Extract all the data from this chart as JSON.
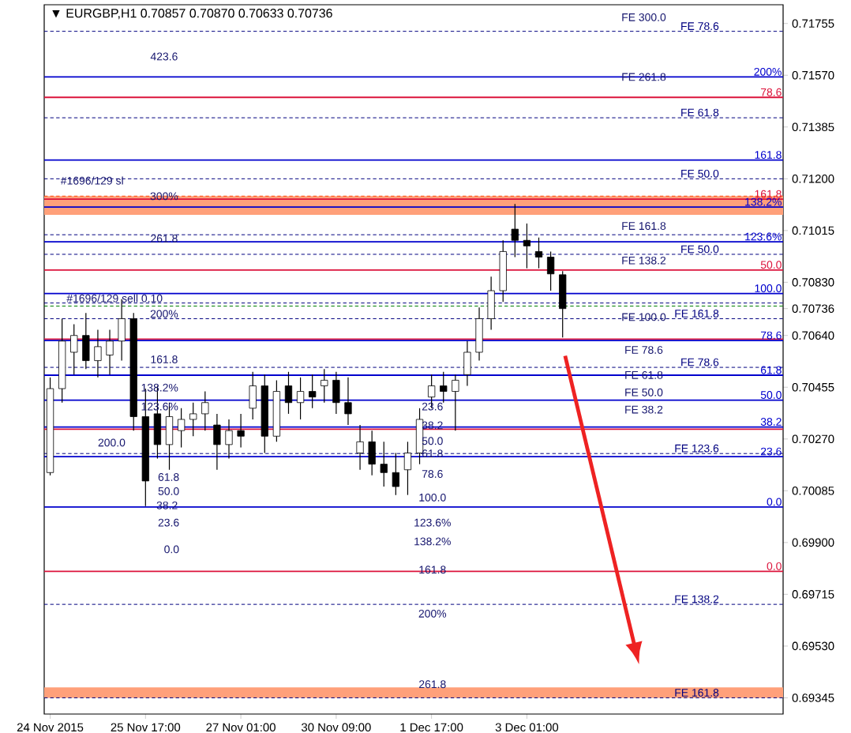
{
  "chart_data": {
    "type": "candlestick",
    "title": "▼ EURGBP,H1  0.70857 0.70870 0.70633 0.70736",
    "categories": [
      "24 Nov 2015",
      null,
      null,
      null,
      null,
      null,
      null,
      null,
      "25 Nov 17:00",
      null,
      null,
      null,
      null,
      null,
      null,
      null,
      "27 Nov 01:00",
      null,
      null,
      null,
      null,
      null,
      null,
      null,
      "30 Nov 09:00",
      null,
      null,
      null,
      null,
      null,
      null,
      null,
      "1 Dec 17:00",
      null,
      null,
      null,
      null,
      null,
      null,
      null,
      "3 Dec 01:00",
      null,
      null,
      null,
      null,
      null,
      null,
      null,
      null,
      null,
      null,
      null,
      null,
      null,
      null,
      null,
      null,
      null,
      null,
      null,
      null,
      null
    ],
    "ohlc": [
      [
        0.7015,
        0.7049,
        0.7014,
        0.7045
      ],
      [
        0.7045,
        0.707,
        0.704,
        0.7062
      ],
      [
        0.7058,
        0.7068,
        0.705,
        0.7064
      ],
      [
        0.7064,
        0.7072,
        0.7052,
        0.7055
      ],
      [
        0.7055,
        0.7066,
        0.7049,
        0.706
      ],
      [
        0.7057,
        0.7066,
        0.705,
        0.7062
      ],
      [
        0.7062,
        0.7077,
        0.7055,
        0.707
      ],
      [
        0.707,
        0.7072,
        0.703,
        0.7035
      ],
      [
        0.7035,
        0.7045,
        0.7003,
        0.7012
      ],
      [
        0.7036,
        0.7046,
        0.702,
        0.7025
      ],
      [
        0.7025,
        0.704,
        0.7016,
        0.7035
      ],
      [
        0.703,
        0.7038,
        0.7024,
        0.7034
      ],
      [
        0.7034,
        0.704,
        0.7028,
        0.7036
      ],
      [
        0.7036,
        0.7044,
        0.703,
        0.704
      ],
      [
        0.7032,
        0.7036,
        0.7016,
        0.7025
      ],
      [
        0.7025,
        0.7034,
        0.702,
        0.703
      ],
      [
        0.703,
        0.7036,
        0.7024,
        0.7028
      ],
      [
        0.7038,
        0.7051,
        0.7034,
        0.7046
      ],
      [
        0.7046,
        0.705,
        0.7022,
        0.7028
      ],
      [
        0.7028,
        0.7048,
        0.7026,
        0.7044
      ],
      [
        0.7046,
        0.7051,
        0.7036,
        0.704
      ],
      [
        0.704,
        0.7049,
        0.7034,
        0.7044
      ],
      [
        0.7044,
        0.705,
        0.7038,
        0.7042
      ],
      [
        0.7046,
        0.7052,
        0.704,
        0.7048
      ],
      [
        0.7048,
        0.7051,
        0.7036,
        0.704
      ],
      [
        0.704,
        0.7049,
        0.7032,
        0.7036
      ],
      [
        0.7022,
        0.7032,
        0.7016,
        0.7026
      ],
      [
        0.7026,
        0.703,
        0.7014,
        0.7018
      ],
      [
        0.7018,
        0.7026,
        0.701,
        0.7015
      ],
      [
        0.7015,
        0.7022,
        0.7007,
        0.701
      ],
      [
        0.7016,
        0.7026,
        0.7007,
        0.7022
      ],
      [
        0.7022,
        0.7038,
        0.7018,
        0.7034
      ],
      [
        0.7042,
        0.705,
        0.7038,
        0.7046
      ],
      [
        0.7046,
        0.7051,
        0.704,
        0.7044
      ],
      [
        0.7044,
        0.705,
        0.703,
        0.7048
      ],
      [
        0.705,
        0.7062,
        0.7046,
        0.7058
      ],
      [
        0.7058,
        0.7074,
        0.7055,
        0.707
      ],
      [
        0.707,
        0.7085,
        0.7066,
        0.708
      ],
      [
        0.708,
        0.7098,
        0.7076,
        0.7094
      ],
      [
        0.7102,
        0.7111,
        0.7092,
        0.7098
      ],
      [
        0.7098,
        0.7104,
        0.7088,
        0.7096
      ],
      [
        0.7094,
        0.7099,
        0.7088,
        0.7092
      ],
      [
        0.7092,
        0.7094,
        0.708,
        0.7086
      ],
      [
        0.70857,
        0.7087,
        0.70633,
        0.70736
      ],
      null,
      null,
      null,
      null,
      null,
      null,
      null,
      null,
      null,
      null,
      null,
      null,
      null,
      null,
      null,
      null,
      null,
      null
    ],
    "color": "#000000",
    "ylim": [
      0.69287,
      0.71822
    ],
    "yticks": [
      0.71755,
      {
        "value": 0.7157,
        "label": "0.71570"
      },
      0.71385,
      {
        "value": 0.712,
        "label": "0.71200"
      },
      0.71015,
      {
        "value": 0.7083,
        "label": "0.70830"
      },
      0.70736,
      {
        "value": 0.7064,
        "label": "0.70640"
      },
      0.70455,
      {
        "value": 0.7027,
        "label": "0.70270"
      },
      0.70085,
      {
        "value": 0.699,
        "label": "0.69900"
      },
      0.69715,
      {
        "value": 0.6953,
        "label": "0.69530"
      },
      0.69345
    ],
    "bands": [
      {
        "axis": "y",
        "from": 0.71071,
        "to": 0.71138,
        "color": "#ffa07a"
      },
      {
        "axis": "y",
        "from": 0.69345,
        "to": 0.69382,
        "color": "#ffa07a"
      }
    ],
    "ref_lines": [
      {
        "axis": "y",
        "value": 0.71727,
        "color": "#000080",
        "line_style": "dashed"
      },
      {
        "axis": "y",
        "value": 0.71564,
        "color": "#0000cd",
        "line_style": "solid"
      },
      {
        "axis": "y",
        "value": 0.71491,
        "color": "#dc143c",
        "line_style": "solid"
      },
      {
        "axis": "y",
        "value": 0.71418,
        "color": "#000080",
        "line_style": "dashed"
      },
      {
        "axis": "y",
        "value": 0.71267,
        "color": "#0000cd",
        "line_style": "solid"
      },
      {
        "axis": "y",
        "value": 0.712,
        "color": "#000080",
        "line_style": "dashed"
      },
      {
        "axis": "y",
        "value": 0.71138,
        "color": "#ff4500",
        "line_style": "dashed"
      },
      {
        "axis": "y",
        "value": 0.71127,
        "color": "#dc143c",
        "line_style": "solid"
      },
      {
        "axis": "y",
        "value": 0.71099,
        "color": "#0000cd",
        "line_style": "solid"
      },
      {
        "axis": "y",
        "value": 0.71,
        "color": "#000080",
        "line_style": "dashed"
      },
      {
        "axis": "y",
        "value": 0.70975,
        "color": "#0000cd",
        "line_style": "solid"
      },
      {
        "axis": "y",
        "value": 0.7093,
        "color": "#000080",
        "line_style": "dashed"
      },
      {
        "axis": "y",
        "value": 0.70874,
        "color": "#dc143c",
        "line_style": "solid"
      },
      {
        "axis": "y",
        "value": 0.7079,
        "color": "#0000cd",
        "line_style": "solid"
      },
      {
        "axis": "y",
        "value": 0.70756,
        "color": "#000080",
        "line_style": "dashed"
      },
      {
        "axis": "y",
        "value": 0.70745,
        "color": "#008000",
        "line_style": "dashed"
      },
      {
        "axis": "y",
        "value": 0.707,
        "color": "#000080",
        "line_style": "dashed"
      },
      {
        "axis": "y",
        "value": 0.70627,
        "color": "#dc143c",
        "line_style": "solid"
      },
      {
        "axis": "y",
        "value": 0.70622,
        "color": "#0000cd",
        "line_style": "solid"
      },
      {
        "axis": "y",
        "value": 0.70526,
        "color": "#000080",
        "line_style": "dashed"
      },
      {
        "axis": "y",
        "value": 0.70498,
        "color": "#0000cd",
        "line_style": "solid"
      },
      {
        "axis": "y",
        "value": 0.70409,
        "color": "#0000cd",
        "line_style": "solid"
      },
      {
        "axis": "y",
        "value": 0.70313,
        "color": "#0000cd",
        "line_style": "solid"
      },
      {
        "axis": "y",
        "value": 0.70305,
        "color": "#dc143c",
        "line_style": "solid"
      },
      {
        "axis": "y",
        "value": 0.70218,
        "color": "#000080",
        "line_style": "dashed"
      },
      {
        "axis": "y",
        "value": 0.70207,
        "color": "#0000cd",
        "line_style": "solid"
      },
      {
        "axis": "y",
        "value": 0.70027,
        "color": "#0000cd",
        "line_style": "solid"
      },
      {
        "axis": "y",
        "value": 0.69797,
        "color": "#dc143c",
        "line_style": "solid"
      },
      {
        "axis": "y",
        "value": 0.69679,
        "color": "#000080",
        "line_style": "dashed"
      },
      {
        "axis": "y",
        "value": 0.69345,
        "color": "#000080",
        "line_style": "dashed"
      }
    ],
    "annotations": [
      "423.6",
      "#1696/129 sl",
      "300%",
      "261.8",
      "#1696/129 sell 0.10",
      "200%",
      "161.8",
      "138.2%",
      "123.6%",
      "200.0",
      "61.8",
      "50.0",
      "38.2",
      "23.6",
      "0.0",
      "23.6",
      "38.2",
      "50.0",
      "61.8",
      "78.6",
      "100.0",
      "123.6%",
      "138.2%",
      "161.8",
      "200%",
      "261.8",
      "FE 300.0",
      "FE 261.8",
      "FE 161.8",
      "FE 138.2",
      "FE 100.0",
      "FE 78.6",
      "FE 61.8",
      "FE 50.0",
      "FE 38.2",
      {
        "text": "FE 78.6",
        "y": 0.71727
      },
      {
        "text": "200%",
        "y": 0.71564
      },
      {
        "text": "78.6",
        "y": 0.71491
      },
      {
        "text": "FE 61.8",
        "y": 0.71418
      },
      {
        "text": "161.8",
        "y": 0.71267
      },
      {
        "text": "FE 50.0",
        "y": 0.712
      },
      {
        "text": "161.8",
        "y": 0.71127
      },
      {
        "text": "138.2%",
        "y": 0.71099
      },
      {
        "text": "123.6%",
        "y": 0.70975
      },
      {
        "text": "FE 50.0",
        "y": 0.7093
      },
      {
        "text": "50.0",
        "y": 0.70874
      },
      {
        "text": "100.0",
        "y": 0.7079
      },
      {
        "text": "FE 161.8",
        "y": 0.707
      },
      {
        "text": "78.6",
        "y": 0.70622
      },
      {
        "text": "FE 78.6",
        "y": 0.70526
      },
      {
        "text": "61.8",
        "y": 0.70498
      },
      {
        "text": "50.0",
        "y": 0.70409
      },
      {
        "text": "38.2",
        "y": 0.70313
      },
      {
        "text": "FE 123.6",
        "y": 0.70218
      },
      {
        "text": "23.6",
        "y": 0.70207
      },
      {
        "text": "0.0",
        "y": 0.70027
      },
      {
        "text": "0.0",
        "y": 0.69797
      },
      {
        "text": "FE 138.2",
        "y": 0.69679
      },
      {
        "text": "FE 161.8",
        "y": 0.69345
      }
    ]
  }
}
